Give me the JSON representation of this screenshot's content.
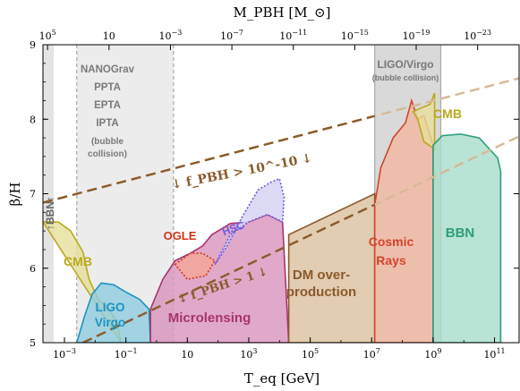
{
  "chart_data": {
    "type": "area",
    "title": "",
    "xlabel": "T_eq [GeV]",
    "ylabel": "β/H",
    "top_axis_label": "M_PBH [M_⊙]",
    "x_scale": "log",
    "xlim_log10": [
      -3.7,
      11.8
    ],
    "ylim": [
      5,
      9
    ],
    "x_ticks": [
      "10^-3",
      "10^-1",
      "10",
      "10^3",
      "10^5",
      "10^7",
      "10^9",
      "10^11"
    ],
    "y_ticks": [
      "5",
      "6",
      "7",
      "8",
      "9"
    ],
    "top_ticks": [
      "10^5",
      "10",
      "10^-3",
      "10^-7",
      "10^-11",
      "10^-15",
      "10^-19",
      "10^-23"
    ],
    "bands": [
      {
        "name": "↑BBN↑",
        "x_log10": [
          -3.7,
          -3.35
        ],
        "color": "#e4e4e4",
        "style": "fill"
      },
      {
        "name": "NANOGrav PPTA EPTA IPTA (bubble collision)",
        "x_log10": [
          -2.6,
          0.55
        ],
        "color": "#ececec",
        "style": "dashed"
      },
      {
        "name": "LIGO/Virgo (bubble collision)",
        "x_log10": [
          7.1,
          9.25
        ],
        "color": "#d9d9d9",
        "style": "solid"
      }
    ],
    "regions": [
      {
        "name": "CMB",
        "color": "#e6df9c",
        "stroke": "#b8aa1e",
        "points": [
          [
            -3.7,
            6.62
          ],
          [
            -3.2,
            6.62
          ],
          [
            -2.8,
            6.5
          ],
          [
            -2.4,
            6.22
          ],
          [
            -2.2,
            5.85
          ],
          [
            -1.9,
            5.58
          ],
          [
            -1.55,
            5.45
          ],
          [
            -1.3,
            5.28
          ],
          [
            -1.15,
            5.0
          ]
        ]
      },
      {
        "name": "LIGO Virgo",
        "color": "#8fcde0",
        "stroke": "#1a94c2",
        "points": [
          [
            -2.6,
            5.0
          ],
          [
            -2.35,
            5.35
          ],
          [
            -2.1,
            5.65
          ],
          [
            -1.8,
            5.8
          ],
          [
            -1.4,
            5.78
          ],
          [
            -1.0,
            5.68
          ],
          [
            -0.55,
            5.58
          ],
          [
            -0.25,
            5.45
          ],
          [
            -0.2,
            5.0
          ]
        ]
      },
      {
        "name": "Microlensing",
        "color": "#d893bc",
        "stroke": "#a8336e",
        "points": [
          [
            -0.2,
            5.45
          ],
          [
            0.2,
            5.85
          ],
          [
            0.6,
            6.1
          ],
          [
            1.1,
            6.2
          ],
          [
            1.5,
            6.3
          ],
          [
            1.8,
            6.45
          ],
          [
            2.4,
            6.6
          ],
          [
            3.0,
            6.62
          ],
          [
            3.6,
            6.72
          ],
          [
            4.1,
            6.62
          ],
          [
            4.3,
            5.0
          ],
          [
            -0.2,
            5.0
          ]
        ]
      },
      {
        "name": "OGLE",
        "color": "#f2a69a",
        "stroke": "#d23418",
        "points": [
          [
            0.6,
            6.05
          ],
          [
            1.1,
            6.2
          ],
          [
            1.5,
            6.2
          ],
          [
            1.9,
            6.1
          ],
          [
            1.6,
            5.9
          ],
          [
            1.0,
            5.85
          ],
          [
            0.6,
            6.05
          ]
        ]
      },
      {
        "name": "HSC",
        "color": "#d6d4f2",
        "stroke": "#6a5be0",
        "points": [
          [
            1.9,
            6.05
          ],
          [
            2.3,
            6.3
          ],
          [
            2.8,
            6.7
          ],
          [
            3.3,
            7.05
          ],
          [
            3.7,
            7.15
          ],
          [
            4.0,
            7.2
          ],
          [
            4.15,
            6.95
          ],
          [
            4.1,
            6.62
          ],
          [
            3.6,
            6.72
          ],
          [
            3.0,
            6.62
          ],
          [
            2.4,
            6.45
          ],
          [
            1.9,
            6.05
          ]
        ]
      },
      {
        "name": "DM over-production",
        "color": "#dbbf9f",
        "stroke": "#8a5a2b",
        "points": [
          [
            4.3,
            5.0
          ],
          [
            4.3,
            6.45
          ],
          [
            7.1,
            7.0
          ],
          [
            7.1,
            5.0
          ]
        ]
      },
      {
        "name": "Cosmic Rays",
        "color": "#f3b7a0",
        "stroke": "#d2462a",
        "points": [
          [
            7.1,
            5.0
          ],
          [
            7.1,
            6.85
          ],
          [
            7.3,
            7.35
          ],
          [
            7.7,
            7.75
          ],
          [
            8.1,
            7.95
          ],
          [
            8.3,
            8.25
          ],
          [
            8.5,
            8.0
          ],
          [
            8.7,
            8.05
          ],
          [
            9.0,
            7.65
          ],
          [
            9.0,
            5.0
          ]
        ]
      },
      {
        "name": "CMB",
        "color": "#e6df9c",
        "stroke": "#b8aa1e",
        "points": [
          [
            8.35,
            8.1
          ],
          [
            8.6,
            8.15
          ],
          [
            8.9,
            8.2
          ],
          [
            9.05,
            8.35
          ],
          [
            9.05,
            7.6
          ],
          [
            8.7,
            7.7
          ],
          [
            8.5,
            8.0
          ]
        ]
      },
      {
        "name": "BBN",
        "color": "#a8dccb",
        "stroke": "#2c9e74",
        "points": [
          [
            9.0,
            5.0
          ],
          [
            9.0,
            7.65
          ],
          [
            9.3,
            7.78
          ],
          [
            9.9,
            7.8
          ],
          [
            10.5,
            7.75
          ],
          [
            11.1,
            7.48
          ],
          [
            11.2,
            7.3
          ],
          [
            11.2,
            5.0
          ]
        ]
      }
    ],
    "lines": [
      {
        "name": "f_PBH > 10^-10",
        "color": "#8a5a2b",
        "style": "dashed",
        "x_log10": [
          -3.7,
          11.8
        ],
        "y": [
          6.88,
          8.55
        ]
      },
      {
        "name": "f_PBH > 1",
        "color": "#8a5a2b",
        "style": "dashed",
        "x_log10": [
          -2.4,
          11.8
        ],
        "y": [
          5.0,
          7.77
        ]
      }
    ],
    "colors": {
      "frame": "#000000",
      "line": "#8a5a2b",
      "line_faded": "#d8b896"
    }
  },
  "labels": {
    "bbn_left": "↑BBN↑",
    "pta": [
      "NANOGrav",
      "PPTA",
      "EPTA",
      "IPTA",
      "(bubble",
      "collision)"
    ],
    "ligo_band": [
      "LIGO/Virgo",
      "(bubble collision)"
    ],
    "cmb_left": "CMB",
    "ligo_region": [
      "LIGO",
      "Virgo"
    ],
    "ogle": "OGLE",
    "hsc": "HSC",
    "microlensing": "Microlensing",
    "dm": [
      "DM over-",
      "production"
    ],
    "cosmic": [
      "Cosmic",
      "Rays"
    ],
    "bbn_right": "BBN",
    "cmb_right": "CMB",
    "f_upper": "↓ f_PBH > 10^-10 ↓",
    "f_lower": "↓ f_PBH > 1 ↓"
  }
}
